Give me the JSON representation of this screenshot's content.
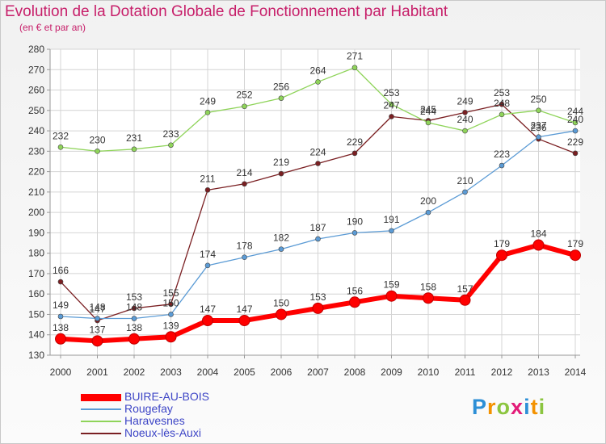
{
  "title": "Evolution de la Dotation Globale de Fonctionnement par Habitant",
  "subtitle": "(en € et par an)",
  "logo": {
    "letters": [
      "P",
      "r",
      "o",
      "x",
      "i",
      "t",
      "i"
    ],
    "colors": [
      "#2d8fd6",
      "#f39200",
      "#8bc53f",
      "#e31c79",
      "#2d8fd6",
      "#f39200",
      "#8bc53f"
    ]
  },
  "chart_data": {
    "type": "line",
    "title": "Evolution de la Dotation Globale de Fonctionnement par Habitant",
    "subtitle": "(en € et par an)",
    "x": [
      "2000",
      "2001",
      "2002",
      "2003",
      "2004",
      "2005",
      "2006",
      "2007",
      "2008",
      "2009",
      "2010",
      "2011",
      "2012",
      "2013",
      "2014"
    ],
    "ylim": [
      130,
      280
    ],
    "yticks": [
      130,
      140,
      150,
      160,
      170,
      180,
      190,
      200,
      210,
      220,
      230,
      240,
      250,
      260,
      270,
      280
    ],
    "grid": true,
    "legend_position": "bottom-left",
    "series": [
      {
        "name": "BUIRE-AU-BOIS",
        "color": "#ff0000",
        "values": [
          138,
          137,
          138,
          139,
          147,
          147,
          150,
          153,
          156,
          159,
          158,
          157,
          179,
          184,
          179
        ]
      },
      {
        "name": "Rougefay",
        "color": "#5b9bd5",
        "values": [
          149,
          148,
          148,
          150,
          174,
          178,
          182,
          187,
          190,
          191,
          200,
          210,
          223,
          237,
          240
        ]
      },
      {
        "name": "Haravesnes",
        "color": "#8fd45a",
        "values": [
          232,
          230,
          231,
          233,
          249,
          252,
          256,
          264,
          271,
          253,
          244,
          240,
          248,
          250,
          244
        ]
      },
      {
        "name": "Noeux-lès-Auxi",
        "color": "#7a1f22",
        "values": [
          166,
          147,
          153,
          155,
          211,
          214,
          219,
          224,
          229,
          247,
          245,
          249,
          253,
          236,
          229
        ]
      }
    ]
  }
}
